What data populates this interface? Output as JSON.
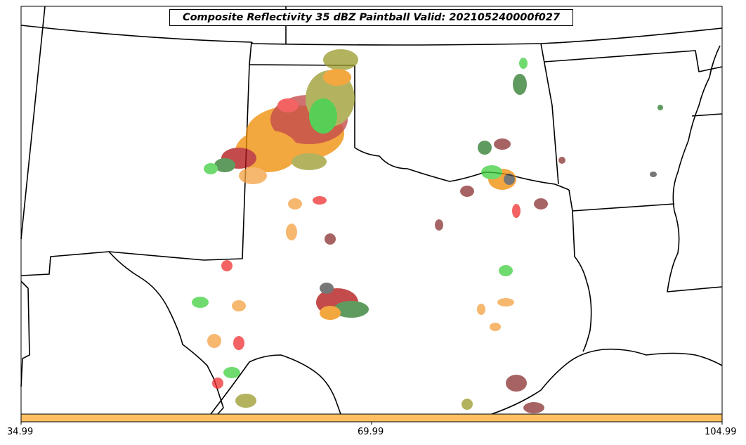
{
  "title": "Composite Reflectivity 35 dBZ Paintball Valid: 202105240000f027",
  "colorbar": {
    "color": "#ffbf62",
    "tick_labels": [
      "34.99",
      "69.99",
      "104.99"
    ]
  },
  "palette": {
    "dark_red": "#b01010",
    "red": "#f03030",
    "orange": "#f08a00",
    "light_orange": "#f4a040",
    "olive": "#9a9a2a",
    "green": "#20c020",
    "light_green": "#40d040",
    "dark_green": "#2a7a2a",
    "gray": "#4a4a4a",
    "maroon": "#8a3030"
  },
  "map": {
    "region": "Southern Plains, United States",
    "features": [
      "state-borders",
      "coastline",
      "radar-reflectivity-paintball"
    ]
  }
}
